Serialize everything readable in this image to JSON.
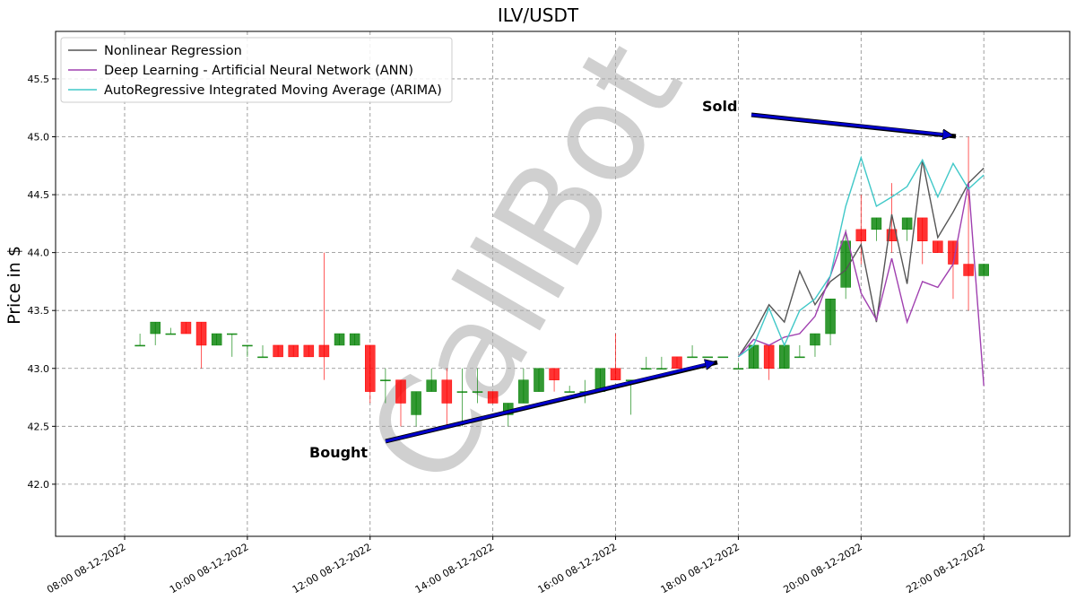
{
  "chart_data": {
    "type": "candlestick",
    "title": "ILV/USDT",
    "ylabel": "Price in $",
    "watermark": "CallBot",
    "up_color": "#008000",
    "down_color": "#ff0000",
    "x": [
      8.25,
      8.5,
      8.75,
      9,
      9.25,
      9.5,
      9.75,
      10,
      10.25,
      10.5,
      10.75,
      11,
      11.25,
      11.5,
      11.75,
      12,
      12.25,
      12.5,
      12.75,
      13,
      13.25,
      13.5,
      13.75,
      14,
      14.25,
      14.5,
      14.75,
      15,
      15.25,
      15.5,
      15.75,
      16,
      16.25,
      16.5,
      16.75,
      17,
      17.25,
      17.5,
      17.75,
      18,
      18.25,
      18.5,
      18.75,
      19,
      19.25,
      19.5,
      19.75,
      20,
      20.25,
      20.5,
      20.75,
      21,
      21.25,
      21.5,
      21.75,
      22
    ],
    "open": [
      43.2,
      43.3,
      43.3,
      43.4,
      43.4,
      43.2,
      43.3,
      43.2,
      43.1,
      43.2,
      43.2,
      43.2,
      43.2,
      43.2,
      43.2,
      43.2,
      42.9,
      42.9,
      42.6,
      42.8,
      42.9,
      42.8,
      42.8,
      42.8,
      42.6,
      42.7,
      42.8,
      43.0,
      42.8,
      42.8,
      42.8,
      43.0,
      42.9,
      43.0,
      43.0,
      43.1,
      43.1,
      43.1,
      43.1,
      43.0,
      43.0,
      43.2,
      43.0,
      43.1,
      43.2,
      43.3,
      43.7,
      44.2,
      44.2,
      44.2,
      44.2,
      44.3,
      44.1,
      44.1,
      43.9,
      43.8
    ],
    "high": [
      43.3,
      43.4,
      43.35,
      43.4,
      43.4,
      43.3,
      43.3,
      43.2,
      43.2,
      43.2,
      43.2,
      43.2,
      44.0,
      43.3,
      43.3,
      43.2,
      43.0,
      42.9,
      42.8,
      43.0,
      43.0,
      43.0,
      43.0,
      42.8,
      42.7,
      43.0,
      43.0,
      43.0,
      42.85,
      42.9,
      43.0,
      43.3,
      42.9,
      43.1,
      43.1,
      43.1,
      43.2,
      43.1,
      43.1,
      43.05,
      43.2,
      43.2,
      43.2,
      43.2,
      43.3,
      43.6,
      44.2,
      44.5,
      44.3,
      44.6,
      44.3,
      44.3,
      44.1,
      44.1,
      45.0,
      43.9
    ],
    "low": [
      43.2,
      43.2,
      43.3,
      43.3,
      43.0,
      43.2,
      43.1,
      43.1,
      43.1,
      43.1,
      43.1,
      43.1,
      42.9,
      43.2,
      43.2,
      42.7,
      42.7,
      42.5,
      42.5,
      42.8,
      42.5,
      42.5,
      42.7,
      42.7,
      42.5,
      42.7,
      42.8,
      42.8,
      42.8,
      42.7,
      42.8,
      42.9,
      42.6,
      43.0,
      43.0,
      43.0,
      43.1,
      43.1,
      43.1,
      43.0,
      43.0,
      42.9,
      43.0,
      43.1,
      43.1,
      43.2,
      43.6,
      43.9,
      44.1,
      44.0,
      44.1,
      43.9,
      44.0,
      43.6,
      43.5,
      43.8
    ],
    "close": [
      43.2,
      43.4,
      43.3,
      43.3,
      43.2,
      43.3,
      43.3,
      43.2,
      43.1,
      43.1,
      43.1,
      43.1,
      43.1,
      43.3,
      43.3,
      42.8,
      42.9,
      42.7,
      42.8,
      42.9,
      42.7,
      42.8,
      42.8,
      42.7,
      42.7,
      42.9,
      43.0,
      42.9,
      42.8,
      42.8,
      43.0,
      42.9,
      42.9,
      43.0,
      43.0,
      43.0,
      43.1,
      43.1,
      43.1,
      43.0,
      43.2,
      43.0,
      43.2,
      43.1,
      43.3,
      43.6,
      44.1,
      44.1,
      44.3,
      44.1,
      44.3,
      44.1,
      44.0,
      43.9,
      43.8,
      43.9
    ],
    "series": [
      {
        "name": "Nonlinear Regression",
        "color": "#555555",
        "x": [
          18,
          18.25,
          18.5,
          18.75,
          19,
          19.25,
          19.5,
          19.75,
          20,
          20.25,
          20.5,
          20.75,
          21,
          21.25,
          21.5,
          21.75,
          22
        ],
        "values": [
          43.1,
          43.3,
          43.55,
          43.4,
          43.84,
          43.55,
          43.75,
          43.85,
          44.07,
          43.4,
          44.33,
          43.73,
          44.8,
          44.13,
          44.35,
          44.6,
          44.73
        ]
      },
      {
        "name": "Deep Learning - Artificial Neural Network (ANN)",
        "color": "#a040b0",
        "x": [
          18,
          18.25,
          18.5,
          18.75,
          19,
          19.25,
          19.5,
          19.75,
          20,
          20.25,
          20.5,
          20.75,
          21,
          21.25,
          21.5,
          21.75,
          22
        ],
        "values": [
          43.1,
          43.25,
          43.2,
          43.27,
          43.3,
          43.45,
          43.8,
          44.18,
          43.65,
          43.42,
          43.95,
          43.4,
          43.75,
          43.7,
          43.9,
          44.6,
          42.85
        ]
      },
      {
        "name": "AutoRegressive Integrated Moving Average (ARIMA)",
        "color": "#40c8c8",
        "x": [
          18,
          18.25,
          18.5,
          18.75,
          19,
          19.25,
          19.5,
          19.75,
          20,
          20.25,
          20.5,
          20.75,
          21,
          21.25,
          21.5,
          21.75,
          22
        ],
        "values": [
          43.1,
          43.2,
          43.52,
          43.2,
          43.5,
          43.6,
          43.8,
          44.4,
          44.82,
          44.4,
          44.48,
          44.57,
          44.8,
          44.48,
          44.77,
          44.55,
          44.67
        ]
      }
    ],
    "annotations": [
      "Sold",
      "Bought"
    ],
    "xlim": [
      6.875,
      23.4
    ],
    "ylim": [
      41.55,
      45.91
    ],
    "xticks": [
      {
        "value": 8,
        "label": "08:00 08-12-2022"
      },
      {
        "value": 10,
        "label": "10:00 08-12-2022"
      },
      {
        "value": 12,
        "label": "12:00 08-12-2022"
      },
      {
        "value": 14,
        "label": "14:00 08-12-2022"
      },
      {
        "value": 16,
        "label": "16:00 08-12-2022"
      },
      {
        "value": 18,
        "label": "18:00 08-12-2022"
      },
      {
        "value": 20,
        "label": "20:00 08-12-2022"
      },
      {
        "value": 22,
        "label": "22:00 08-12-2022"
      }
    ],
    "yticks": [
      {
        "value": 42,
        "label": "42.0"
      },
      {
        "value": 42.5,
        "label": "42.5"
      },
      {
        "value": 43,
        "label": "43.0"
      },
      {
        "value": 43.5,
        "label": "43.5"
      },
      {
        "value": 44,
        "label": "44.0"
      },
      {
        "value": 44.5,
        "label": "44.5"
      },
      {
        "value": 45,
        "label": "45.0"
      },
      {
        "value": 45.5,
        "label": "45.5"
      }
    ],
    "grid": true,
    "legend": "upper left"
  }
}
